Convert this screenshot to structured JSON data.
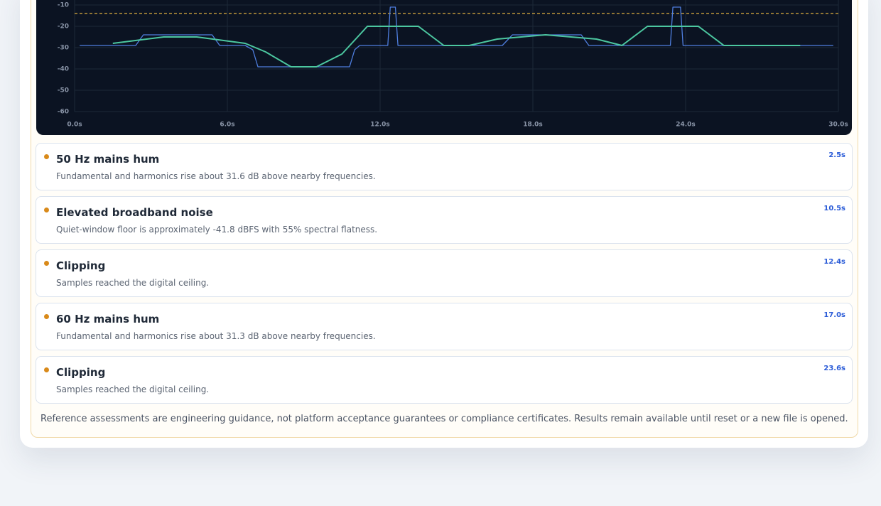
{
  "chart_data": {
    "type": "line",
    "xlim": [
      0,
      30
    ],
    "xticks": [
      {
        "value": 0,
        "label": "0.0s"
      },
      {
        "value": 6,
        "label": "6.0s"
      },
      {
        "value": 12,
        "label": "12.0s"
      },
      {
        "value": 18,
        "label": "18.0s"
      },
      {
        "value": 24,
        "label": "24.0s"
      },
      {
        "value": 30,
        "label": "30.0s"
      }
    ],
    "ylim": [
      -60,
      0
    ],
    "yticks": [
      -60,
      -50,
      -40,
      -30,
      -20,
      -10
    ],
    "grid": true,
    "threshold": -14,
    "threshold_color": "#e0b040",
    "series": [
      {
        "color": "#4f7fe0",
        "x": [
          0.2,
          2.4,
          2.7,
          5.4,
          5.7,
          6.7,
          7.0,
          7.2,
          10.8,
          11.0,
          11.2,
          12.3,
          12.4,
          12.6,
          12.7,
          16.8,
          17.2,
          19.9,
          20.2,
          23.4,
          23.5,
          23.8,
          23.9,
          29.8
        ],
        "values": [
          -29,
          -29,
          -24,
          -24,
          -29,
          -29,
          -31,
          -39,
          -39,
          -31,
          -29,
          -29,
          -11,
          -11,
          -29,
          -29,
          -24,
          -24,
          -29,
          -29,
          -11,
          -11,
          -29,
          -29
        ]
      },
      {
        "color": "#4cc7a0",
        "x": [
          1.5,
          3.5,
          4.8,
          6.7,
          7.5,
          8.5,
          9.5,
          10.5,
          11.5,
          13.5,
          14.5,
          15.5,
          16.6,
          18.5,
          20.5,
          21.5,
          22.5,
          24.5,
          25.5,
          28.5
        ],
        "values": [
          -28,
          -25,
          -25,
          -28,
          -32,
          -39,
          -39,
          -33,
          -20,
          -20,
          -29,
          -29,
          -26,
          -24,
          -26,
          -29,
          -20,
          -20,
          -29,
          -29
        ]
      }
    ]
  },
  "issues": [
    {
      "title": "50 Hz mains hum",
      "description": "Fundamental and harmonics rise about 31.6 dB above nearby frequencies.",
      "time": "2.5s"
    },
    {
      "title": "Elevated broadband noise",
      "description": "Quiet-window floor is approximately -41.8 dBFS with 55% spectral flatness.",
      "time": "10.5s"
    },
    {
      "title": "Clipping",
      "description": "Samples reached the digital ceiling.",
      "time": "12.4s"
    },
    {
      "title": "60 Hz mains hum",
      "description": "Fundamental and harmonics rise about 31.3 dB above nearby frequencies.",
      "time": "17.0s"
    },
    {
      "title": "Clipping",
      "description": "Samples reached the digital ceiling.",
      "time": "23.6s"
    }
  ],
  "note": "Reference assessments are engineering guidance, not platform acceptance guarantees or compliance certificates. Results remain available until reset or a new file is opened."
}
